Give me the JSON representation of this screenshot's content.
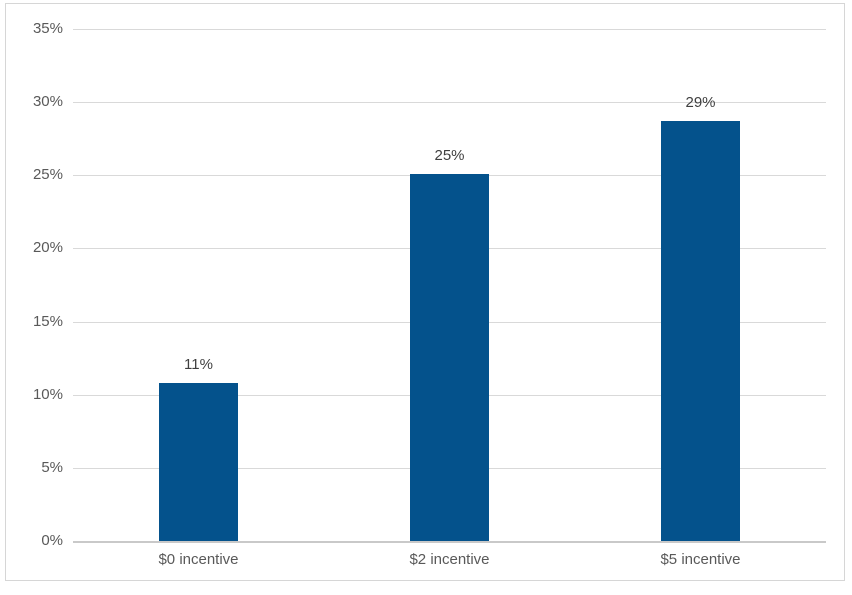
{
  "chart_data": {
    "type": "bar",
    "title": "",
    "categories": [
      "$0 incentive",
      "$2 incentive",
      "$5 incentive"
    ],
    "values": [
      10.8,
      25.1,
      28.7
    ],
    "data_labels": [
      "11%",
      "25%",
      "29%"
    ],
    "y_tick_labels": [
      "35%",
      "30%",
      "25%",
      "20%",
      "15%",
      "10%",
      "5%",
      "0%"
    ],
    "ylim": [
      0,
      35
    ],
    "y_tick_step": 5,
    "xlabel": "",
    "ylabel": "",
    "grid": "horizontal",
    "legend_position": "none",
    "colors": {
      "bar": "#04528C",
      "gridline": "#d9d9d9",
      "axis_line": "#c9c9c9",
      "tick_text": "#595959",
      "data_label_text": "#3f3f3f",
      "frame_border": "#d6d6d6",
      "background": "#ffffff"
    }
  }
}
